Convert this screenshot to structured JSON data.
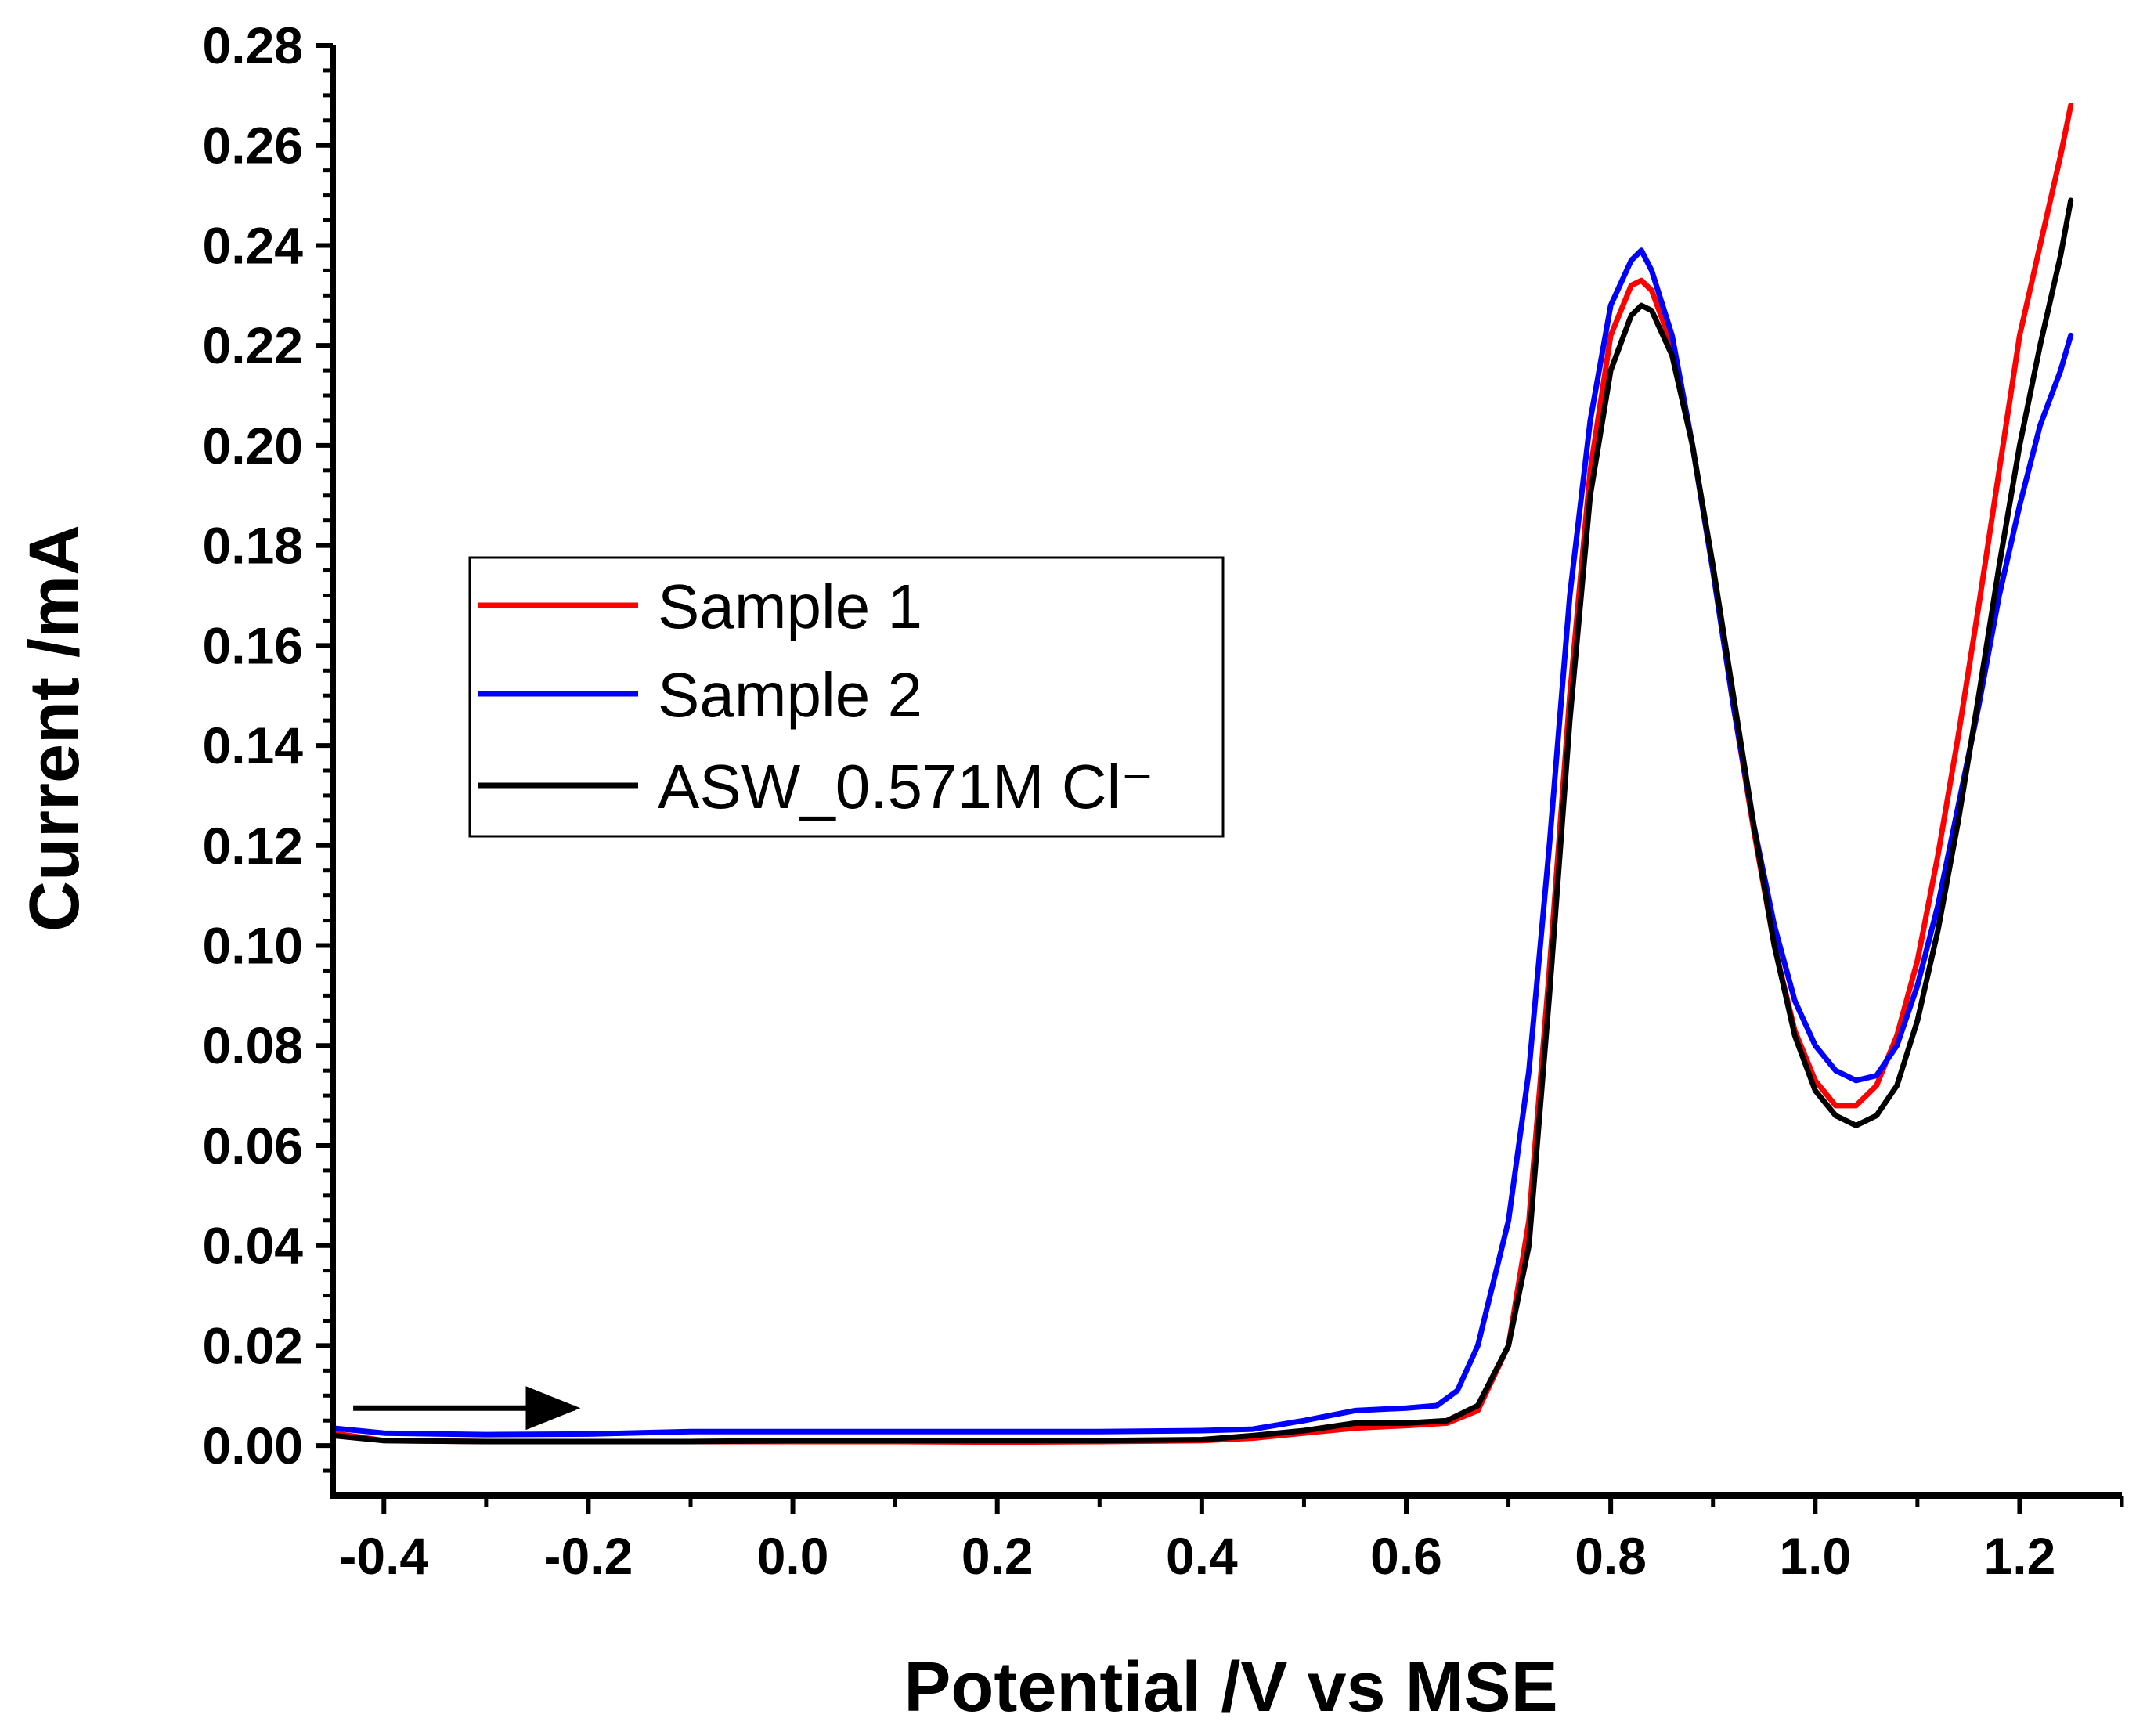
{
  "chart_data": {
    "type": "line",
    "title": "",
    "xlabel": "Potential /V vs MSE",
    "ylabel": "Current /mA",
    "xlim": [
      -0.45,
      1.3
    ],
    "ylim": [
      -0.01,
      0.28
    ],
    "xticks": [
      -0.4,
      -0.2,
      0.0,
      0.2,
      0.4,
      0.6,
      0.8,
      1.0,
      1.2
    ],
    "xtick_labels": [
      "-0.4",
      "-0.2",
      "0.0",
      "0.2",
      "0.4",
      "0.6",
      "0.8",
      "1.0",
      "1.2"
    ],
    "yticks": [
      0.0,
      0.02,
      0.04,
      0.06,
      0.08,
      0.1,
      0.12,
      0.14,
      0.16,
      0.18,
      0.2,
      0.22,
      0.24,
      0.26,
      0.28
    ],
    "ytick_labels": [
      "0.00",
      "0.02",
      "0.04",
      "0.06",
      "0.08",
      "0.10",
      "0.12",
      "0.14",
      "0.16",
      "0.18",
      "0.20",
      "0.22",
      "0.24",
      "0.26",
      "0.28"
    ],
    "grid": false,
    "legend_position": "left-center",
    "annotations": [
      {
        "type": "arrow",
        "description": "scan direction",
        "from": [
          -0.43,
          0.0075
        ],
        "to": [
          -0.21,
          0.0075
        ]
      }
    ],
    "series": [
      {
        "name": "Sample 1",
        "color": "#ff0000",
        "points": [
          [
            -0.45,
            0.0025
          ],
          [
            -0.4,
            0.001
          ],
          [
            -0.3,
            0.0008
          ],
          [
            -0.2,
            0.0008
          ],
          [
            -0.1,
            0.0008
          ],
          [
            0.0,
            0.0008
          ],
          [
            0.1,
            0.0008
          ],
          [
            0.2,
            0.0007
          ],
          [
            0.3,
            0.0008
          ],
          [
            0.4,
            0.001
          ],
          [
            0.45,
            0.0015
          ],
          [
            0.5,
            0.0025
          ],
          [
            0.55,
            0.0035
          ],
          [
            0.6,
            0.004
          ],
          [
            0.64,
            0.0045
          ],
          [
            0.67,
            0.007
          ],
          [
            0.7,
            0.02
          ],
          [
            0.72,
            0.045
          ],
          [
            0.74,
            0.095
          ],
          [
            0.76,
            0.15
          ],
          [
            0.78,
            0.195
          ],
          [
            0.8,
            0.222
          ],
          [
            0.82,
            0.232
          ],
          [
            0.83,
            0.233
          ],
          [
            0.84,
            0.231
          ],
          [
            0.86,
            0.22
          ],
          [
            0.88,
            0.2
          ],
          [
            0.9,
            0.175
          ],
          [
            0.92,
            0.148
          ],
          [
            0.94,
            0.123
          ],
          [
            0.96,
            0.1
          ],
          [
            0.98,
            0.083
          ],
          [
            1.0,
            0.073
          ],
          [
            1.02,
            0.068
          ],
          [
            1.04,
            0.068
          ],
          [
            1.06,
            0.072
          ],
          [
            1.08,
            0.082
          ],
          [
            1.1,
            0.097
          ],
          [
            1.12,
            0.118
          ],
          [
            1.14,
            0.142
          ],
          [
            1.16,
            0.168
          ],
          [
            1.18,
            0.195
          ],
          [
            1.2,
            0.222
          ],
          [
            1.22,
            0.24
          ],
          [
            1.24,
            0.258
          ],
          [
            1.25,
            0.268
          ]
        ]
      },
      {
        "name": "Sample 2",
        "color": "#0000ff",
        "points": [
          [
            -0.45,
            0.0035
          ],
          [
            -0.4,
            0.0025
          ],
          [
            -0.3,
            0.0022
          ],
          [
            -0.2,
            0.0023
          ],
          [
            -0.1,
            0.0028
          ],
          [
            0.0,
            0.0028
          ],
          [
            0.1,
            0.0028
          ],
          [
            0.2,
            0.0028
          ],
          [
            0.3,
            0.0028
          ],
          [
            0.4,
            0.003
          ],
          [
            0.45,
            0.0033
          ],
          [
            0.5,
            0.005
          ],
          [
            0.55,
            0.007
          ],
          [
            0.6,
            0.0075
          ],
          [
            0.63,
            0.008
          ],
          [
            0.65,
            0.011
          ],
          [
            0.67,
            0.02
          ],
          [
            0.7,
            0.045
          ],
          [
            0.72,
            0.075
          ],
          [
            0.74,
            0.12
          ],
          [
            0.76,
            0.17
          ],
          [
            0.78,
            0.205
          ],
          [
            0.8,
            0.228
          ],
          [
            0.82,
            0.237
          ],
          [
            0.83,
            0.239
          ],
          [
            0.84,
            0.235
          ],
          [
            0.86,
            0.222
          ],
          [
            0.88,
            0.2
          ],
          [
            0.9,
            0.175
          ],
          [
            0.92,
            0.148
          ],
          [
            0.94,
            0.124
          ],
          [
            0.96,
            0.104
          ],
          [
            0.98,
            0.089
          ],
          [
            1.0,
            0.08
          ],
          [
            1.02,
            0.075
          ],
          [
            1.04,
            0.073
          ],
          [
            1.06,
            0.074
          ],
          [
            1.08,
            0.08
          ],
          [
            1.1,
            0.092
          ],
          [
            1.12,
            0.108
          ],
          [
            1.14,
            0.128
          ],
          [
            1.16,
            0.148
          ],
          [
            1.18,
            0.17
          ],
          [
            1.2,
            0.188
          ],
          [
            1.22,
            0.204
          ],
          [
            1.24,
            0.215
          ],
          [
            1.25,
            0.222
          ]
        ]
      },
      {
        "name": "ASW_0.571M Cl⁻",
        "color": "#000000",
        "points": [
          [
            -0.45,
            0.002
          ],
          [
            -0.4,
            0.001
          ],
          [
            -0.3,
            0.0008
          ],
          [
            -0.2,
            0.0008
          ],
          [
            -0.1,
            0.0008
          ],
          [
            0.0,
            0.001
          ],
          [
            0.1,
            0.001
          ],
          [
            0.2,
            0.001
          ],
          [
            0.3,
            0.001
          ],
          [
            0.4,
            0.0012
          ],
          [
            0.45,
            0.002
          ],
          [
            0.5,
            0.003
          ],
          [
            0.55,
            0.0045
          ],
          [
            0.6,
            0.0045
          ],
          [
            0.64,
            0.005
          ],
          [
            0.67,
            0.008
          ],
          [
            0.7,
            0.02
          ],
          [
            0.72,
            0.04
          ],
          [
            0.74,
            0.09
          ],
          [
            0.76,
            0.145
          ],
          [
            0.78,
            0.19
          ],
          [
            0.8,
            0.215
          ],
          [
            0.82,
            0.226
          ],
          [
            0.83,
            0.228
          ],
          [
            0.84,
            0.227
          ],
          [
            0.86,
            0.218
          ],
          [
            0.88,
            0.2
          ],
          [
            0.9,
            0.176
          ],
          [
            0.92,
            0.15
          ],
          [
            0.94,
            0.124
          ],
          [
            0.96,
            0.1
          ],
          [
            0.98,
            0.082
          ],
          [
            1.0,
            0.071
          ],
          [
            1.02,
            0.066
          ],
          [
            1.04,
            0.064
          ],
          [
            1.06,
            0.066
          ],
          [
            1.08,
            0.072
          ],
          [
            1.1,
            0.085
          ],
          [
            1.12,
            0.103
          ],
          [
            1.14,
            0.125
          ],
          [
            1.16,
            0.15
          ],
          [
            1.18,
            0.176
          ],
          [
            1.2,
            0.2
          ],
          [
            1.22,
            0.22
          ],
          [
            1.24,
            0.238
          ],
          [
            1.25,
            0.249
          ]
        ]
      }
    ]
  }
}
